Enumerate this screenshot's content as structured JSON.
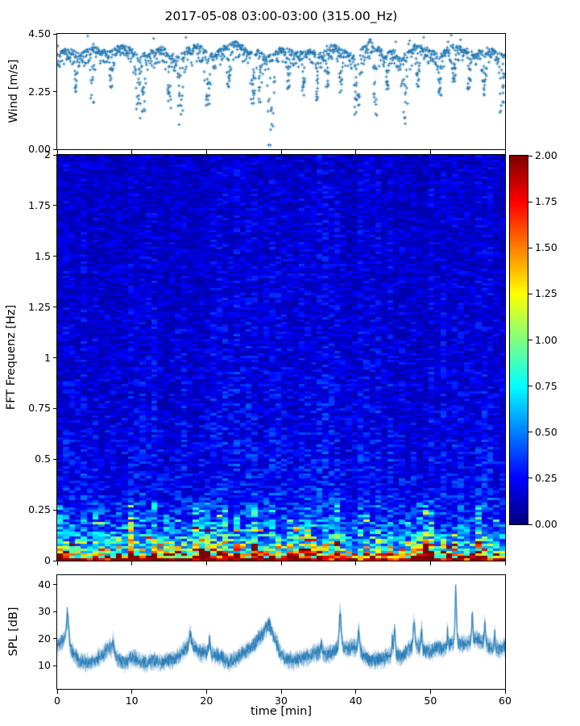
{
  "title": "2017-05-08 03:00-03:00 (315.00_Hz)",
  "colors": {
    "series_blue": "#1f77b4",
    "axis": "#000000",
    "background": "#ffffff",
    "colormap": "jet"
  },
  "chart_data": [
    {
      "id": "wind",
      "type": "scatter",
      "ylabel": "Wind [m/s]",
      "ylim": [
        0,
        4.5
      ],
      "ytick_values": [
        0.0,
        2.25,
        4.5
      ],
      "ytick_labels": [
        "0.00",
        "2.25",
        "4.50"
      ],
      "xlim": [
        0,
        60
      ],
      "xtick_values": [
        0,
        10,
        20,
        30,
        40,
        50,
        60
      ],
      "xtick_labels": [],
      "marker": "+",
      "series_color": "#1f77b4",
      "grid": false,
      "envelope_t": [
        0,
        1,
        2,
        3,
        4,
        5,
        6,
        7,
        8,
        9,
        10,
        11,
        12,
        13,
        14,
        15,
        16,
        17,
        18,
        19,
        20,
        21,
        22,
        23,
        24,
        25,
        26,
        27,
        28,
        29,
        30,
        31,
        32,
        33,
        34,
        35,
        36,
        37,
        38,
        39,
        40,
        41,
        42,
        43,
        44,
        45,
        46,
        47,
        48,
        49,
        50,
        51,
        52,
        53,
        54,
        55,
        56,
        57,
        58,
        59,
        60
      ],
      "mean_wind": [
        3.3,
        3.5,
        3.5,
        3.3,
        3.5,
        3.6,
        3.5,
        3.4,
        3.6,
        3.7,
        3.5,
        3.2,
        3.4,
        3.5,
        3.6,
        3.4,
        3.2,
        3.5,
        3.6,
        3.7,
        3.4,
        3.3,
        3.6,
        3.7,
        3.8,
        3.6,
        3.4,
        3.5,
        3.2,
        3.4,
        3.6,
        3.5,
        3.4,
        3.4,
        3.5,
        3.3,
        3.6,
        3.7,
        3.5,
        3.4,
        3.2,
        3.6,
        3.9,
        3.6,
        3.3,
        3.5,
        3.2,
        3.4,
        3.7,
        3.6,
        3.5,
        3.3,
        3.5,
        3.7,
        3.6,
        3.5,
        3.4,
        3.5,
        3.6,
        3.4,
        3.3
      ],
      "dips": [
        [
          2.6,
          2.2,
          0.3
        ],
        [
          4.7,
          1.8,
          0.35
        ],
        [
          7.2,
          2.4,
          0.3
        ],
        [
          10.8,
          1.0,
          0.5
        ],
        [
          11.6,
          1.4,
          0.3
        ],
        [
          15.0,
          1.6,
          0.4
        ],
        [
          16.5,
          0.85,
          0.5
        ],
        [
          20.2,
          1.7,
          0.5
        ],
        [
          23.0,
          2.4,
          0.3
        ],
        [
          26.2,
          1.6,
          0.4
        ],
        [
          27.2,
          1.5,
          0.3
        ],
        [
          28.6,
          0.15,
          0.5
        ],
        [
          31.0,
          2.3,
          0.3
        ],
        [
          33.0,
          2.1,
          0.3
        ],
        [
          34.8,
          1.9,
          0.35
        ],
        [
          36.2,
          2.3,
          0.3
        ],
        [
          38.0,
          2.2,
          0.3
        ],
        [
          40.2,
          1.1,
          0.5
        ],
        [
          42.6,
          1.2,
          0.4
        ],
        [
          44.2,
          2.3,
          0.3
        ],
        [
          46.6,
          0.85,
          0.55
        ],
        [
          48.3,
          2.4,
          0.3
        ],
        [
          51.3,
          2.1,
          0.35
        ],
        [
          53.2,
          2.6,
          0.3
        ],
        [
          55.2,
          2.3,
          0.3
        ],
        [
          57.2,
          2.1,
          0.35
        ],
        [
          59.5,
          1.35,
          0.45
        ]
      ]
    },
    {
      "id": "spectrogram",
      "type": "heatmap",
      "ylabel": "FFT Frequenz [Hz]",
      "ylim": [
        0,
        2
      ],
      "ytick_values": [
        0,
        0.25,
        0.5,
        0.75,
        1,
        1.25,
        1.5,
        1.75,
        2
      ],
      "ytick_labels": [
        "0",
        "0.25",
        "0.5",
        "0.75",
        "1",
        "1.25",
        "1.5",
        "1.75",
        "2"
      ],
      "xlim": [
        0,
        60
      ],
      "xtick_values": [
        0,
        10,
        20,
        30,
        40,
        50,
        60
      ],
      "xtick_labels": [],
      "clim": [
        0,
        2
      ],
      "colormap": "jet",
      "n_time_bins": 76,
      "n_freq_bins": 168,
      "freq_profile": {
        "f": [
          0,
          0.008,
          0.02,
          0.04,
          0.07,
          0.1,
          0.14,
          0.2,
          0.27,
          0.4,
          0.6,
          1.0,
          1.5,
          2.0
        ],
        "value": [
          2.1,
          1.95,
          1.5,
          1.1,
          0.85,
          0.65,
          0.5,
          0.38,
          0.3,
          0.25,
          0.22,
          0.19,
          0.17,
          0.16
        ]
      },
      "texture": {
        "cell_noise_min": 0.45,
        "cell_noise_span": 1.25,
        "bright_streak_prob": 0.07,
        "bright_streak_gain": 1.9,
        "low_band_limit_hz": 0.28,
        "bottom_band_hz": 0.012,
        "bottom_value_min": 1.75,
        "bottom_value_span": 0.45,
        "column_boost_prob": 0.2
      }
    },
    {
      "id": "spl",
      "type": "line",
      "ylabel": "SPL [dB]",
      "xlabel": "time [min]",
      "ylim": [
        1.5,
        43.5
      ],
      "ytick_values": [
        10,
        20,
        30,
        40
      ],
      "ytick_labels": [
        "10",
        "20",
        "30",
        "40"
      ],
      "xlim": [
        0,
        60
      ],
      "xtick_values": [
        0,
        10,
        20,
        30,
        40,
        50,
        60
      ],
      "xtick_labels": [
        "0",
        "10",
        "20",
        "30",
        "40",
        "50",
        "60"
      ],
      "series_color": "#1f77b4",
      "grid": false,
      "mean_t": [
        0,
        1,
        2,
        3,
        4,
        5,
        6,
        7,
        8,
        9,
        10,
        11,
        12,
        13,
        14,
        15,
        16,
        17,
        18,
        19,
        20,
        21,
        22,
        23,
        24,
        25,
        26,
        27,
        28,
        29,
        30,
        31,
        32,
        33,
        34,
        35,
        36,
        37,
        38,
        39,
        40,
        41,
        42,
        43,
        44,
        45,
        46,
        47,
        48,
        49,
        50,
        51,
        52,
        53,
        54,
        55,
        56,
        57,
        58,
        59,
        60
      ],
      "mean_spl": [
        17,
        20,
        15,
        12,
        11,
        12,
        14,
        17,
        13,
        11,
        13,
        12,
        11,
        12,
        11,
        12,
        13,
        16,
        18,
        15,
        15,
        14,
        13,
        11,
        13,
        15,
        17,
        20,
        23,
        21,
        14,
        12,
        12,
        13,
        14,
        15,
        14,
        15,
        18,
        16,
        17,
        14,
        12,
        12,
        13,
        15,
        13,
        16,
        18,
        16,
        15,
        17,
        16,
        19,
        18,
        18,
        20,
        19,
        17,
        16,
        17
      ],
      "spikes": [
        [
          1.4,
          10,
          0.25
        ],
        [
          7.5,
          4,
          0.15
        ],
        [
          17.8,
          4,
          0.2
        ],
        [
          20.4,
          5,
          0.15
        ],
        [
          28.4,
          3,
          0.3
        ],
        [
          35.4,
          4,
          0.12
        ],
        [
          37.9,
          11,
          0.18
        ],
        [
          40.4,
          7,
          0.15
        ],
        [
          44.9,
          5,
          0.1
        ],
        [
          45.2,
          10,
          0.12
        ],
        [
          47.8,
          8,
          0.15
        ],
        [
          48.8,
          7,
          0.12
        ],
        [
          52.3,
          6,
          0.1
        ],
        [
          53.4,
          17,
          0.15
        ],
        [
          55.6,
          9,
          0.12
        ],
        [
          57.3,
          7,
          0.12
        ],
        [
          58.6,
          6,
          0.1
        ]
      ]
    }
  ],
  "colorbar": {
    "min": 0,
    "max": 2,
    "colormap": "jet",
    "tick_values": [
      0,
      0.25,
      0.5,
      0.75,
      1,
      1.25,
      1.5,
      1.75,
      2
    ],
    "tick_labels": [
      "0.00",
      "0.25",
      "0.50",
      "0.75",
      "1.00",
      "1.25",
      "1.50",
      "1.75",
      "2.00"
    ]
  }
}
